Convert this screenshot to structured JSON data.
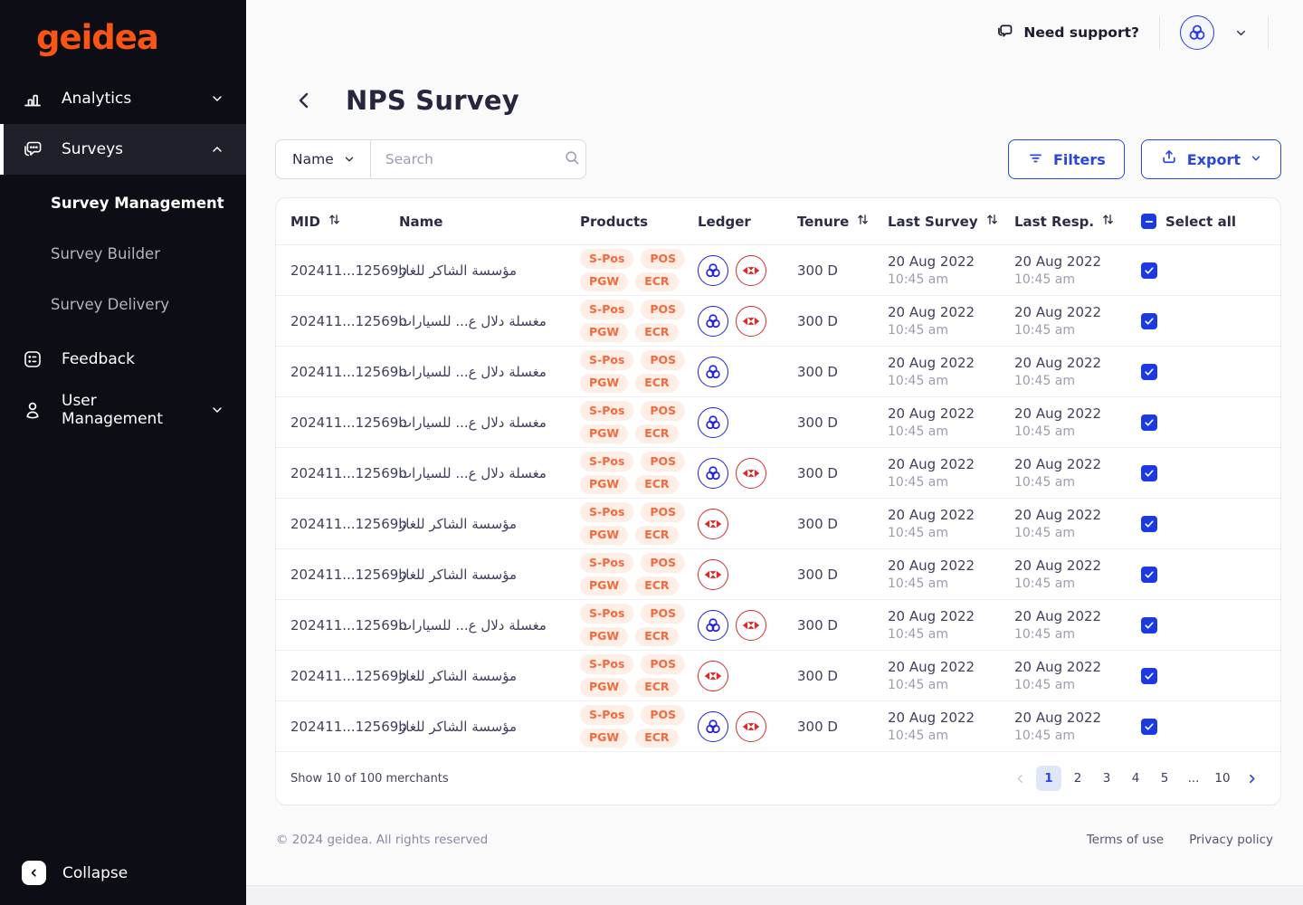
{
  "brand": {
    "logo_text": "geidea",
    "orange": "#fa5515",
    "blue": "#2b46dd",
    "ledger_blue": "#2323e0",
    "ledger_red": "#d92b2b"
  },
  "sidebar": {
    "analytics_label": "Analytics",
    "surveys_label": "Surveys",
    "surveys_subitems": [
      {
        "label": "Survey Management",
        "current": true
      },
      {
        "label": "Survey Builder",
        "current": false
      },
      {
        "label": "Survey Delivery",
        "current": false
      }
    ],
    "feedback_label": "Feedback",
    "user_management_label": "User Management",
    "collapse_label": "Collapse"
  },
  "topbar": {
    "support_label": "Need support?"
  },
  "page": {
    "title": "NPS Survey"
  },
  "toolbar": {
    "field_selector_value": "Name",
    "search_placeholder": "Search",
    "filters_label": "Filters",
    "export_label": "Export"
  },
  "table": {
    "columns": {
      "mid": "MID",
      "name": "Name",
      "products": "Products",
      "ledger": "Ledger",
      "tenure": "Tenure",
      "last_survey": "Last Survey",
      "last_resp": "Last Resp.",
      "select_all": "Select all"
    },
    "rows": [
      {
        "mid": "202411...12569b",
        "name": "مؤسسة الشاكر للغاز",
        "products": [
          "S-Pos",
          "POS",
          "PGW",
          "ECR"
        ],
        "ledger": [
          "geidea",
          "hsbc"
        ],
        "tenure": "300 D",
        "last_survey_date": "20 Aug 2022",
        "last_survey_time": "10:45 am",
        "last_resp_date": "20 Aug 2022",
        "last_resp_time": "10:45 am",
        "selected": true
      },
      {
        "mid": "202411...12569b",
        "name": "مغسلة دلال ع... للسيارات",
        "products": [
          "S-Pos",
          "POS",
          "PGW",
          "ECR"
        ],
        "ledger": [
          "geidea",
          "hsbc"
        ],
        "tenure": "300 D",
        "last_survey_date": "20 Aug 2022",
        "last_survey_time": "10:45 am",
        "last_resp_date": "20 Aug 2022",
        "last_resp_time": "10:45 am",
        "selected": true
      },
      {
        "mid": "202411...12569b",
        "name": "مغسلة دلال ع... للسيارات",
        "products": [
          "S-Pos",
          "POS",
          "PGW",
          "ECR"
        ],
        "ledger": [
          "geidea"
        ],
        "tenure": "300 D",
        "last_survey_date": "20 Aug 2022",
        "last_survey_time": "10:45 am",
        "last_resp_date": "20 Aug 2022",
        "last_resp_time": "10:45 am",
        "selected": true
      },
      {
        "mid": "202411...12569b",
        "name": "مغسلة دلال ع... للسيارات",
        "products": [
          "S-Pos",
          "POS",
          "PGW",
          "ECR"
        ],
        "ledger": [
          "geidea"
        ],
        "tenure": "300 D",
        "last_survey_date": "20 Aug 2022",
        "last_survey_time": "10:45 am",
        "last_resp_date": "20 Aug 2022",
        "last_resp_time": "10:45 am",
        "selected": true
      },
      {
        "mid": "202411...12569b",
        "name": "مغسلة دلال ع... للسيارات",
        "products": [
          "S-Pos",
          "POS",
          "PGW",
          "ECR"
        ],
        "ledger": [
          "geidea",
          "hsbc"
        ],
        "tenure": "300 D",
        "last_survey_date": "20 Aug 2022",
        "last_survey_time": "10:45 am",
        "last_resp_date": "20 Aug 2022",
        "last_resp_time": "10:45 am",
        "selected": true
      },
      {
        "mid": "202411...12569b",
        "name": "مؤسسة الشاكر للغاز",
        "products": [
          "S-Pos",
          "POS",
          "PGW",
          "ECR"
        ],
        "ledger": [
          "hsbc"
        ],
        "tenure": "300 D",
        "last_survey_date": "20 Aug 2022",
        "last_survey_time": "10:45 am",
        "last_resp_date": "20 Aug 2022",
        "last_resp_time": "10:45 am",
        "selected": true
      },
      {
        "mid": "202411...12569b",
        "name": "مؤسسة الشاكر للغاز",
        "products": [
          "S-Pos",
          "POS",
          "PGW",
          "ECR"
        ],
        "ledger": [
          "hsbc"
        ],
        "tenure": "300 D",
        "last_survey_date": "20 Aug 2022",
        "last_survey_time": "10:45 am",
        "last_resp_date": "20 Aug 2022",
        "last_resp_time": "10:45 am",
        "selected": true
      },
      {
        "mid": "202411...12569b",
        "name": "مغسلة دلال ع... للسيارات",
        "products": [
          "S-Pos",
          "POS",
          "PGW",
          "ECR"
        ],
        "ledger": [
          "geidea",
          "hsbc"
        ],
        "tenure": "300 D",
        "last_survey_date": "20 Aug 2022",
        "last_survey_time": "10:45 am",
        "last_resp_date": "20 Aug 2022",
        "last_resp_time": "10:45 am",
        "selected": true
      },
      {
        "mid": "202411...12569b",
        "name": "مؤسسة الشاكر للغاز",
        "products": [
          "S-Pos",
          "POS",
          "PGW",
          "ECR"
        ],
        "ledger": [
          "hsbc"
        ],
        "tenure": "300 D",
        "last_survey_date": "20 Aug 2022",
        "last_survey_time": "10:45 am",
        "last_resp_date": "20 Aug 2022",
        "last_resp_time": "10:45 am",
        "selected": true
      },
      {
        "mid": "202411...12569b",
        "name": "مؤسسة الشاكر للغاز",
        "products": [
          "S-Pos",
          "POS",
          "PGW",
          "ECR"
        ],
        "ledger": [
          "geidea",
          "hsbc"
        ],
        "tenure": "300 D",
        "last_survey_date": "20 Aug 2022",
        "last_survey_time": "10:45 am",
        "last_resp_date": "20 Aug 2022",
        "last_resp_time": "10:45 am",
        "selected": true
      }
    ]
  },
  "pagination": {
    "summary": "Show 10 of 100 merchants",
    "pages": [
      "1",
      "2",
      "3",
      "4",
      "5",
      "...",
      "10"
    ],
    "active_page": "1"
  },
  "footer": {
    "copyright": "© 2024 geidea. All rights reserved",
    "terms_label": "Terms of use",
    "privacy_label": "Privacy policy"
  }
}
